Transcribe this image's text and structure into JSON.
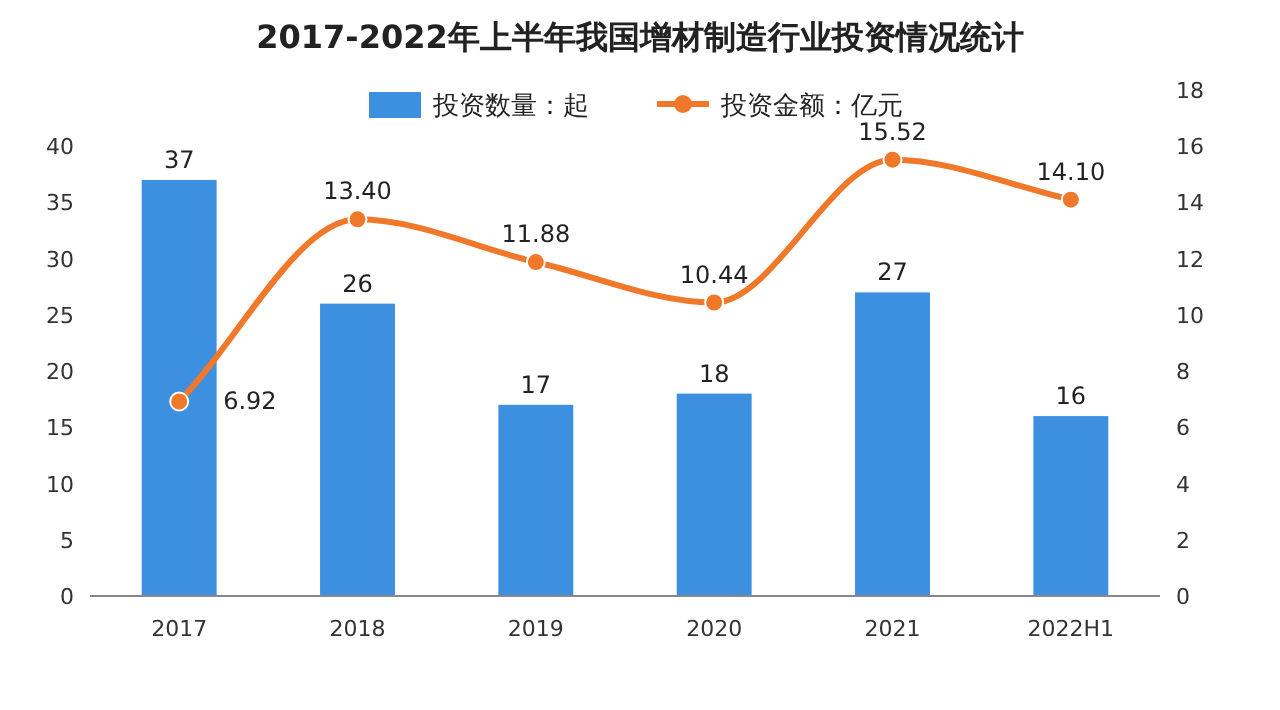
{
  "chart_data": {
    "type": "bar",
    "title": "2017-2022年上半年我国增材制造行业投资情况统计",
    "categories": [
      "2017",
      "2018",
      "2019",
      "2020",
      "2021",
      "2022H1"
    ],
    "series": [
      {
        "name": "投资数量：起",
        "color": "#3d8fe0",
        "values": [
          37,
          26,
          17,
          18,
          27,
          16
        ],
        "value_labels": [
          "37",
          "26",
          "17",
          "18",
          "27",
          "16"
        ]
      },
      {
        "name": "投资金额：亿元",
        "type": "line",
        "axis": "y2",
        "color": "#f0782a",
        "marker": "circle",
        "values": [
          6.92,
          13.4,
          11.88,
          10.44,
          15.52,
          14.1
        ],
        "value_labels": [
          "6.92",
          "13.40",
          "11.88",
          "10.44",
          "15.52",
          "14.10"
        ]
      }
    ],
    "ylim": [
      0,
      45
    ],
    "yticks": [
      0,
      5,
      10,
      15,
      20,
      25,
      30,
      35,
      40
    ],
    "y2lim": [
      0,
      18
    ],
    "y2ticks": [
      0,
      2,
      4,
      6,
      8,
      10,
      12,
      14,
      16,
      18
    ],
    "grid": false,
    "legend": "top"
  }
}
